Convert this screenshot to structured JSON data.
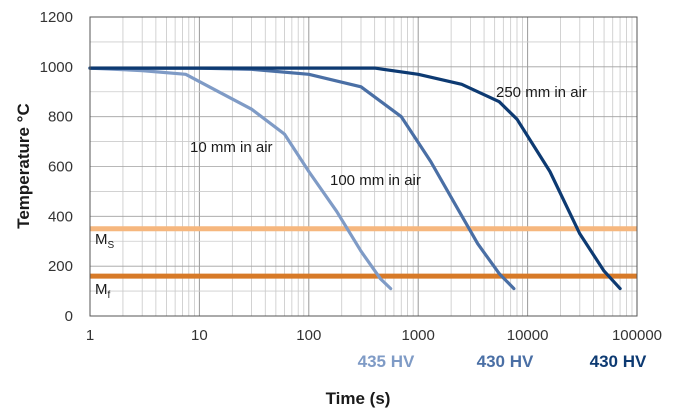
{
  "chart_data": {
    "type": "line",
    "xlabel": "Time (s)",
    "ylabel": "Temperature °C",
    "xscale": "log",
    "xlim": [
      1,
      100000
    ],
    "ylim": [
      0,
      1200
    ],
    "x_ticks": [
      "1",
      "10",
      "100",
      "1000",
      "10000",
      "100000"
    ],
    "y_ticks": [
      "0",
      "200",
      "400",
      "600",
      "800",
      "1000",
      "1200"
    ],
    "grid": true,
    "series": [
      {
        "name": "10 mm in air",
        "color": "#7f9bc6",
        "x": [
          1,
          3,
          7.5,
          15,
          30,
          60,
          100,
          180,
          300,
          450,
          560
        ],
        "y": [
          995,
          985,
          970,
          900,
          830,
          730,
          580,
          420,
          260,
          150,
          110
        ]
      },
      {
        "name": "100 mm in air",
        "color": "#4a6fa5",
        "x": [
          1,
          10,
          30,
          100,
          300,
          700,
          1300,
          2300,
          3500,
          5500,
          7500
        ],
        "y": [
          995,
          995,
          990,
          970,
          920,
          800,
          620,
          430,
          290,
          170,
          110
        ]
      },
      {
        "name": "250 mm in air",
        "color": "#0d3a72",
        "x": [
          1,
          100,
          400,
          1000,
          2500,
          5500,
          8000,
          16000,
          30000,
          50000,
          70000
        ],
        "y": [
          995,
          995,
          995,
          970,
          930,
          860,
          790,
          580,
          330,
          180,
          110
        ]
      }
    ],
    "reference_lines": [
      {
        "label": "M",
        "subscript": "S",
        "y": 350,
        "color": "#f6b77e"
      },
      {
        "label": "M",
        "subscript": "f",
        "y": 160,
        "color": "#d77a28"
      }
    ],
    "hardness_labels": [
      {
        "text": "435 HV",
        "color": "#7f9bc6"
      },
      {
        "text": "430 HV",
        "color": "#4a6fa5"
      },
      {
        "text": "430 HV",
        "color": "#0d3a72"
      }
    ]
  }
}
